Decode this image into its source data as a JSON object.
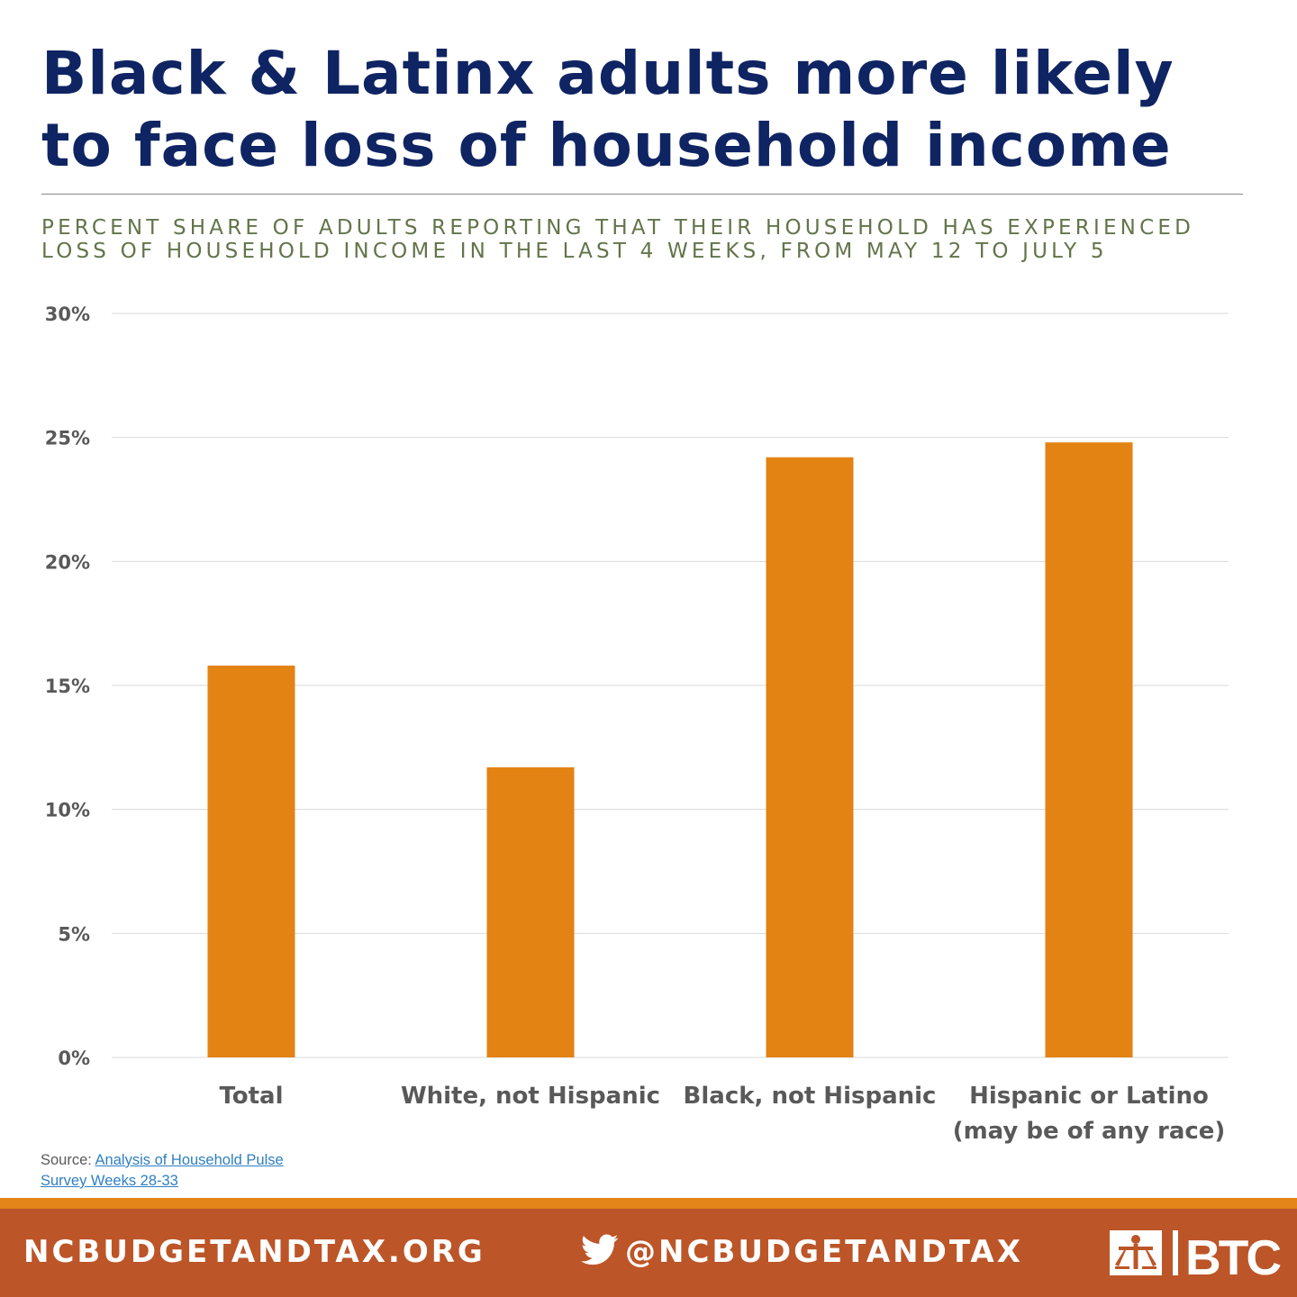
{
  "title": "Black & Latinx adults more likely to face loss of household income",
  "subtitle": "PERCENT SHARE OF ADULTS REPORTING THAT THEIR HOUSEHOLD HAS EXPERIENCED LOSS OF HOUSEHOLD INCOME IN THE LAST 4 WEEKS, FROM MAY 12 TO JULY 5",
  "colors": {
    "title": "#0f2462",
    "bar": "#e28314",
    "footer": "#bc5528",
    "stripe": "#e4851a"
  },
  "chart_data": {
    "type": "bar",
    "title": "Black & Latinx adults more likely to face loss of household income",
    "categories": [
      [
        "Total"
      ],
      [
        "White, not Hispanic"
      ],
      [
        "Black, not Hispanic"
      ],
      [
        "Hispanic or Latino",
        "(may be of any race)"
      ]
    ],
    "values": [
      15.8,
      11.7,
      24.2,
      24.8
    ],
    "ylim": [
      0,
      30
    ],
    "yticks": [
      "0%",
      "5%",
      "10%",
      "15%",
      "20%",
      "25%",
      "30%"
    ],
    "grid": true,
    "legend": "none"
  },
  "source": {
    "prefix": "Source: ",
    "link_text": "Analysis of Household Pulse Survey Weeks 28-33"
  },
  "footer": {
    "website": "NCBUDGETANDTAX.ORG",
    "twitter": "@NCBUDGETANDTAX",
    "logo_text": "BTC",
    "twitter_icon": "twitter-icon",
    "logo_icon": "btc-logo-icon"
  }
}
